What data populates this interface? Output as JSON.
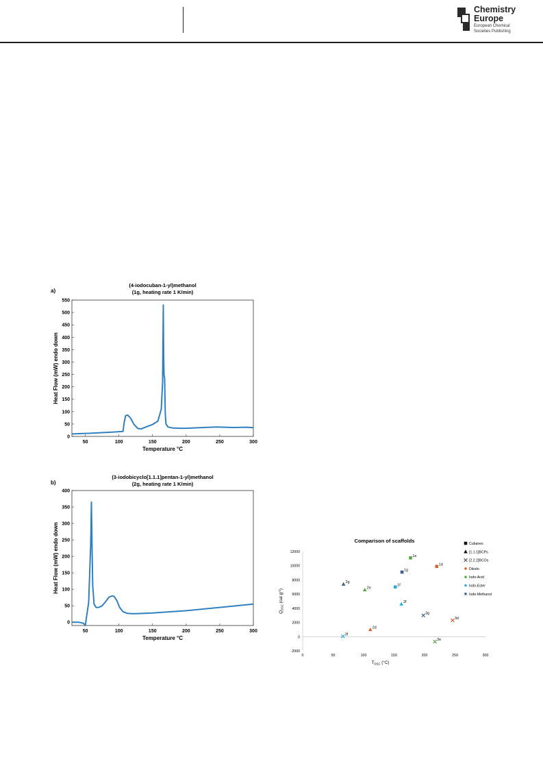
{
  "header": {
    "logo": {
      "title_line1": "Chemistry",
      "title_line2": "Europe",
      "sub_line1": "European Chemical",
      "sub_line2": "Societies Publishing"
    }
  },
  "chart_data": [
    {
      "type": "line",
      "panel_label": "a)",
      "title": "(4-iodocuban-1-yl)methanol",
      "subtitle": "(1g, heating rate 1 K/min)",
      "xlabel": "Temperature °C",
      "ylabel": "Heat Flow (mW) endo down",
      "xlim": [
        30,
        300
      ],
      "ylim": [
        0,
        550
      ],
      "xticks": [
        50,
        100,
        150,
        200,
        250,
        300
      ],
      "yticks": [
        0,
        50,
        100,
        150,
        200,
        250,
        300,
        350,
        400,
        450,
        500,
        550
      ],
      "color": "#2f7fc1",
      "series": [
        {
          "x": [
            30,
            60,
            90,
            106,
            108,
            110,
            113,
            117,
            122,
            128,
            133,
            140,
            150,
            158,
            163,
            165,
            166,
            166.5,
            167,
            167.5,
            168,
            168.5,
            169,
            170,
            173,
            180,
            190,
            200,
            220,
            245,
            270,
            290,
            300
          ],
          "y": [
            10,
            13,
            17,
            20,
            60,
            84,
            86,
            75,
            50,
            32,
            30,
            38,
            48,
            62,
            110,
            220,
            530,
            330,
            250,
            240,
            235,
            160,
            90,
            50,
            38,
            34,
            33,
            33,
            35,
            38,
            36,
            37,
            35
          ]
        }
      ]
    },
    {
      "type": "line",
      "panel_label": "b)",
      "title": "(3-iodobicyclo[1.1.1]pentan-1-yl)methanol",
      "subtitle": "(2g, heating rate 1 K/min)",
      "xlabel": "Temperature °C",
      "ylabel": "Heat Flow (mW) endo down",
      "xlim": [
        30,
        300
      ],
      "ylim": [
        -10,
        400
      ],
      "xticks": [
        50,
        100,
        150,
        200,
        250,
        300
      ],
      "yticks": [
        0,
        50,
        100,
        150,
        200,
        250,
        300,
        350,
        400
      ],
      "color": "#2f7fc1",
      "series": [
        {
          "x": [
            30,
            40,
            47,
            50,
            52,
            55,
            58,
            59,
            60,
            61,
            63,
            66,
            70,
            75,
            80,
            85,
            90,
            93,
            97,
            101,
            106,
            112,
            120,
            125,
            150,
            200,
            250,
            300
          ],
          "y": [
            0,
            0,
            -3,
            -10,
            20,
            60,
            240,
            365,
            230,
            110,
            55,
            45,
            45,
            50,
            62,
            76,
            80,
            78,
            65,
            45,
            32,
            27,
            26,
            26,
            28,
            35,
            45,
            55
          ]
        }
      ]
    },
    {
      "type": "scatter",
      "title": "Comparison of scaffolds",
      "xlabel_main": "T",
      "xlabel_sub": "DSC",
      "xlabel_unit": " (°C)",
      "ylabel_main": "Q",
      "ylabel_sub": "DSC",
      "ylabel_unit": " (cal g",
      "ylabel_sup": "-1",
      "ylabel_close": ")",
      "xlim": [
        0,
        300
      ],
      "ylim": [
        -2000,
        12000
      ],
      "xticks": [
        0,
        50,
        100,
        150,
        200,
        250,
        300
      ],
      "yticks": [
        -2000,
        0,
        2000,
        4000,
        6000,
        8000,
        10000,
        12000
      ],
      "legend_position": "right",
      "legend": [
        {
          "label": "Cubanes",
          "marker": "square",
          "color": "#111111"
        },
        {
          "label": "[1.1.1]BCPs",
          "marker": "triangle",
          "color": "#111111"
        },
        {
          "label": "[2.2.2]BCOs",
          "marker": "cross",
          "color": "#555555"
        },
        {
          "label": "Diiodo",
          "marker": "dot",
          "color": "#d9622b"
        },
        {
          "label": "Iodo-Acid",
          "marker": "dot",
          "color": "#5aa843"
        },
        {
          "label": "Iodo-Ester",
          "marker": "dot",
          "color": "#2aa9df"
        },
        {
          "label": "Iodo-Methanol",
          "marker": "dot",
          "color": "#3b5f8e"
        }
      ],
      "points": [
        {
          "label": "1e",
          "x": 177,
          "y": 11100,
          "marker": "square",
          "color": "#5aa843"
        },
        {
          "label": "1d",
          "x": 220,
          "y": 9900,
          "marker": "square",
          "color": "#d9622b"
        },
        {
          "label": "1g",
          "x": 163,
          "y": 9100,
          "marker": "square",
          "color": "#3b5f8e"
        },
        {
          "label": "1f",
          "x": 152,
          "y": 7000,
          "marker": "square",
          "color": "#2aa9df"
        },
        {
          "label": "2g",
          "x": 67,
          "y": 7400,
          "marker": "triangle",
          "color": "#3b5f8e"
        },
        {
          "label": "2e",
          "x": 102,
          "y": 6600,
          "marker": "triangle",
          "color": "#5aa843"
        },
        {
          "label": "2f",
          "x": 162,
          "y": 4600,
          "marker": "triangle",
          "color": "#2aa9df"
        },
        {
          "label": "2d",
          "x": 111,
          "y": 1000,
          "marker": "triangle",
          "color": "#d9622b"
        },
        {
          "label": "3g",
          "x": 198,
          "y": 3000,
          "marker": "cross",
          "color": "#3b5f8e"
        },
        {
          "label": "3d",
          "x": 246,
          "y": 2300,
          "marker": "cross",
          "color": "#d9622b"
        },
        {
          "label": "3f",
          "x": 66,
          "y": 50,
          "marker": "cross",
          "color": "#2aa9df"
        },
        {
          "label": "3e",
          "x": 217,
          "y": -700,
          "marker": "cross",
          "color": "#5aa843"
        }
      ]
    }
  ]
}
